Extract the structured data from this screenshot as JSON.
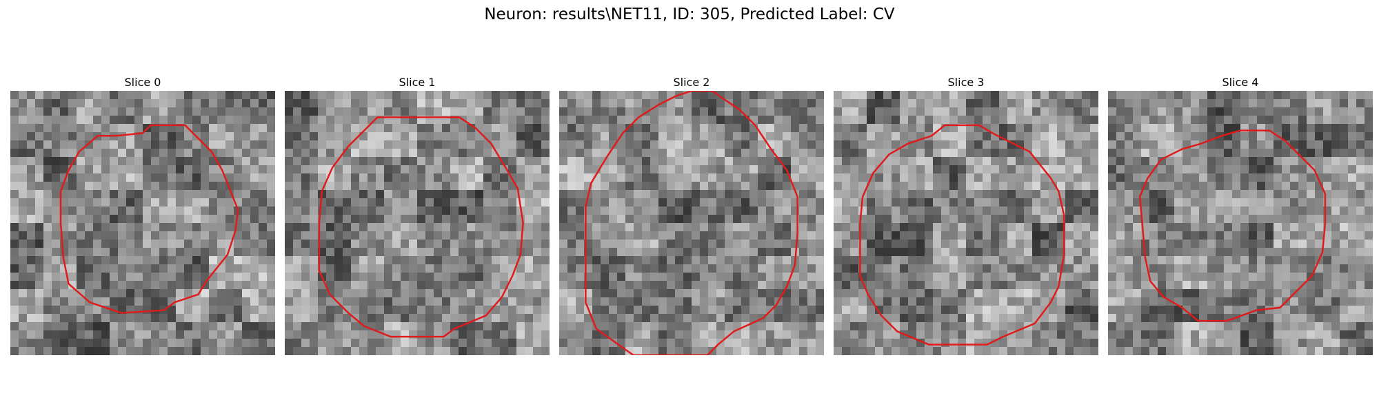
{
  "figure": {
    "title": "Neuron: results\\NET11, ID: 305, Predicted Label: CV",
    "colormap": "gray",
    "contour_color": "#e01b1b",
    "panels": [
      {
        "title": "Slice 0",
        "contour": [
          [
            0.53,
            0.13
          ],
          [
            0.66,
            0.13
          ],
          [
            0.7,
            0.17
          ],
          [
            0.76,
            0.23
          ],
          [
            0.8,
            0.3
          ],
          [
            0.84,
            0.4
          ],
          [
            0.86,
            0.45
          ],
          [
            0.85,
            0.53
          ],
          [
            0.82,
            0.62
          ],
          [
            0.78,
            0.67
          ],
          [
            0.74,
            0.72
          ],
          [
            0.71,
            0.77
          ],
          [
            0.62,
            0.8
          ],
          [
            0.58,
            0.83
          ],
          [
            0.42,
            0.84
          ],
          [
            0.36,
            0.82
          ],
          [
            0.3,
            0.8
          ],
          [
            0.22,
            0.73
          ],
          [
            0.2,
            0.63
          ],
          [
            0.19,
            0.5
          ],
          [
            0.19,
            0.38
          ],
          [
            0.22,
            0.3
          ],
          [
            0.26,
            0.23
          ],
          [
            0.33,
            0.17
          ],
          [
            0.4,
            0.17
          ],
          [
            0.5,
            0.16
          ]
        ]
      },
      {
        "title": "Slice 1",
        "contour": [
          [
            0.35,
            0.1
          ],
          [
            0.66,
            0.1
          ],
          [
            0.72,
            0.14
          ],
          [
            0.78,
            0.2
          ],
          [
            0.84,
            0.3
          ],
          [
            0.88,
            0.37
          ],
          [
            0.9,
            0.5
          ],
          [
            0.89,
            0.62
          ],
          [
            0.86,
            0.7
          ],
          [
            0.82,
            0.78
          ],
          [
            0.76,
            0.85
          ],
          [
            0.64,
            0.9
          ],
          [
            0.6,
            0.93
          ],
          [
            0.4,
            0.93
          ],
          [
            0.3,
            0.89
          ],
          [
            0.24,
            0.84
          ],
          [
            0.17,
            0.77
          ],
          [
            0.13,
            0.68
          ],
          [
            0.13,
            0.5
          ],
          [
            0.14,
            0.38
          ],
          [
            0.18,
            0.29
          ],
          [
            0.24,
            0.21
          ],
          [
            0.3,
            0.15
          ]
        ]
      },
      {
        "title": "Slice 2",
        "contour": [
          [
            0.5,
            0.0
          ],
          [
            0.58,
            0.0
          ],
          [
            0.62,
            0.03
          ],
          [
            0.68,
            0.07
          ],
          [
            0.74,
            0.13
          ],
          [
            0.8,
            0.22
          ],
          [
            0.86,
            0.3
          ],
          [
            0.9,
            0.4
          ],
          [
            0.9,
            0.54
          ],
          [
            0.89,
            0.66
          ],
          [
            0.86,
            0.74
          ],
          [
            0.82,
            0.81
          ],
          [
            0.77,
            0.86
          ],
          [
            0.66,
            0.91
          ],
          [
            0.6,
            0.96
          ],
          [
            0.56,
            1.0
          ],
          [
            0.28,
            1.0
          ],
          [
            0.14,
            0.9
          ],
          [
            0.1,
            0.8
          ],
          [
            0.1,
            0.6
          ],
          [
            0.1,
            0.44
          ],
          [
            0.12,
            0.35
          ],
          [
            0.18,
            0.25
          ],
          [
            0.24,
            0.16
          ],
          [
            0.3,
            0.1
          ],
          [
            0.38,
            0.05
          ],
          [
            0.44,
            0.02
          ]
        ]
      },
      {
        "title": "Slice 3",
        "contour": [
          [
            0.37,
            0.17
          ],
          [
            0.42,
            0.13
          ],
          [
            0.55,
            0.13
          ],
          [
            0.6,
            0.16
          ],
          [
            0.66,
            0.19
          ],
          [
            0.74,
            0.23
          ],
          [
            0.82,
            0.33
          ],
          [
            0.85,
            0.38
          ],
          [
            0.87,
            0.47
          ],
          [
            0.87,
            0.62
          ],
          [
            0.85,
            0.74
          ],
          [
            0.82,
            0.8
          ],
          [
            0.76,
            0.88
          ],
          [
            0.64,
            0.93
          ],
          [
            0.58,
            0.96
          ],
          [
            0.36,
            0.96
          ],
          [
            0.24,
            0.91
          ],
          [
            0.18,
            0.85
          ],
          [
            0.13,
            0.77
          ],
          [
            0.1,
            0.7
          ],
          [
            0.1,
            0.5
          ],
          [
            0.11,
            0.4
          ],
          [
            0.15,
            0.31
          ],
          [
            0.21,
            0.24
          ],
          [
            0.28,
            0.2
          ]
        ]
      },
      {
        "title": "Slice 4",
        "contour": [
          [
            0.5,
            0.15
          ],
          [
            0.61,
            0.15
          ],
          [
            0.67,
            0.19
          ],
          [
            0.73,
            0.25
          ],
          [
            0.78,
            0.3
          ],
          [
            0.82,
            0.39
          ],
          [
            0.82,
            0.5
          ],
          [
            0.81,
            0.61
          ],
          [
            0.77,
            0.7
          ],
          [
            0.72,
            0.75
          ],
          [
            0.65,
            0.82
          ],
          [
            0.56,
            0.83
          ],
          [
            0.45,
            0.87
          ],
          [
            0.34,
            0.87
          ],
          [
            0.28,
            0.82
          ],
          [
            0.21,
            0.78
          ],
          [
            0.16,
            0.72
          ],
          [
            0.14,
            0.63
          ],
          [
            0.13,
            0.51
          ],
          [
            0.12,
            0.4
          ],
          [
            0.15,
            0.33
          ],
          [
            0.2,
            0.26
          ],
          [
            0.28,
            0.22
          ],
          [
            0.35,
            0.2
          ],
          [
            0.43,
            0.17
          ]
        ]
      }
    ]
  }
}
